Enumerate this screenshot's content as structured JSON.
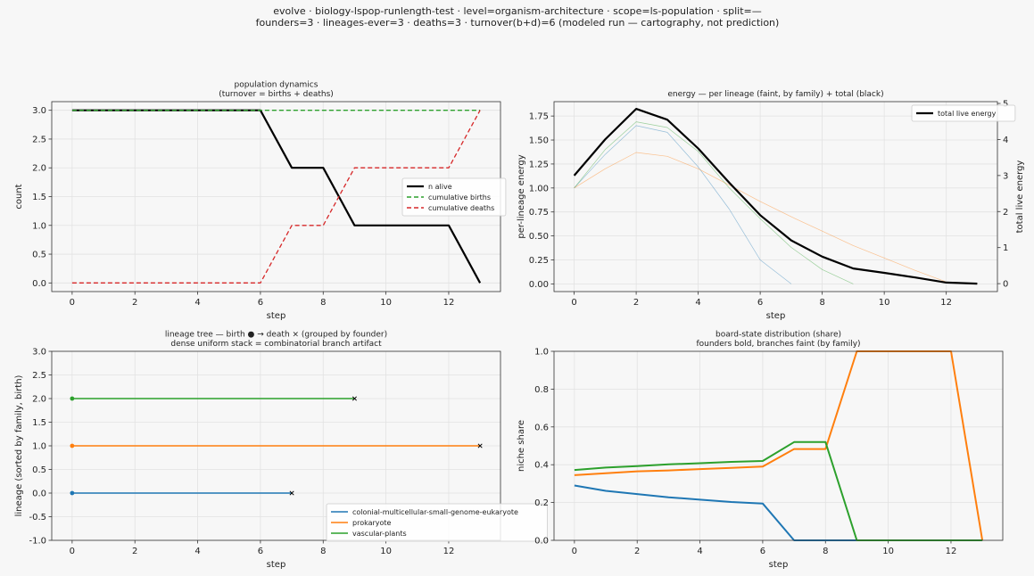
{
  "suptitle": {
    "line1": "evolve · biology-lspop-runlength-test · level=organism-architecture · scope=ls-population · split=—",
    "line2": "founders=3 · lineages-ever=3 · deaths=3 · turnover(b+d)=6   (modeled run — cartography, not prediction)"
  },
  "colors": {
    "blue": "#1f77b4",
    "orange": "#ff7f0e",
    "green": "#2ca02c",
    "red": "#d62728",
    "black": "#000000"
  },
  "chart_data": [
    {
      "id": "population",
      "type": "line",
      "title": [
        "population dynamics",
        "(turnover = births + deaths)"
      ],
      "xlabel": "step",
      "ylabel": "count",
      "xlim": [
        -0.65,
        13.65
      ],
      "ylim": [
        -0.15,
        3.15
      ],
      "xticks": [
        0,
        2,
        4,
        6,
        8,
        10,
        12
      ],
      "yticks": [
        0.0,
        0.5,
        1.0,
        1.5,
        2.0,
        2.5,
        3.0
      ],
      "grid": true,
      "legend": "center-right",
      "series": [
        {
          "name": "n alive",
          "color": "#000000",
          "style": "solid",
          "width": 2.2,
          "x": [
            0,
            1,
            2,
            3,
            4,
            5,
            6,
            7,
            8,
            9,
            10,
            11,
            12,
            13
          ],
          "y": [
            3,
            3,
            3,
            3,
            3,
            3,
            3,
            2,
            2,
            1,
            1,
            1,
            1,
            0
          ]
        },
        {
          "name": "cumulative births",
          "color": "#2ca02c",
          "style": "dashed",
          "width": 1.3,
          "x": [
            0,
            1,
            2,
            3,
            4,
            5,
            6,
            7,
            8,
            9,
            10,
            11,
            12,
            13
          ],
          "y": [
            3,
            3,
            3,
            3,
            3,
            3,
            3,
            3,
            3,
            3,
            3,
            3,
            3,
            3
          ]
        },
        {
          "name": "cumulative deaths",
          "color": "#d62728",
          "style": "dashed",
          "width": 1.3,
          "x": [
            0,
            1,
            2,
            3,
            4,
            5,
            6,
            7,
            8,
            9,
            10,
            11,
            12,
            13
          ],
          "y": [
            0,
            0,
            0,
            0,
            0,
            0,
            0,
            1,
            1,
            2,
            2,
            2,
            2,
            3
          ]
        }
      ]
    },
    {
      "id": "energy",
      "type": "line",
      "title": [
        "energy — per lineage (faint, by family) + total (black)"
      ],
      "xlabel": "step",
      "ylabel": "per-lineage energy",
      "ylabel_right": "total live energy",
      "xlim": [
        -0.65,
        13.65
      ],
      "ylim": [
        -0.08,
        1.9
      ],
      "ylim_right": [
        -0.22,
        5.05
      ],
      "xticks": [
        0,
        2,
        4,
        6,
        8,
        10,
        12
      ],
      "yticks": [
        0.0,
        0.25,
        0.5,
        0.75,
        1.0,
        1.25,
        1.5,
        1.75
      ],
      "yticks_right": [
        0,
        1,
        2,
        3,
        4,
        5
      ],
      "grid": true,
      "legend": "top-right",
      "series": [
        {
          "color": "#1f77b4",
          "width": 0.7,
          "opacity": 0.45,
          "x": [
            0,
            1,
            2,
            3,
            4,
            5,
            6,
            7
          ],
          "y": [
            1.0,
            1.35,
            1.65,
            1.58,
            1.22,
            0.78,
            0.25,
            0.0
          ]
        },
        {
          "color": "#ff7f0e",
          "width": 0.7,
          "opacity": 0.45,
          "x": [
            0,
            1,
            2,
            3,
            4,
            5,
            6,
            7,
            8,
            9,
            10,
            11,
            12,
            13
          ],
          "y": [
            1.0,
            1.2,
            1.37,
            1.33,
            1.2,
            1.03,
            0.86,
            0.7,
            0.55,
            0.4,
            0.27,
            0.14,
            0.02,
            0.0
          ]
        },
        {
          "color": "#2ca02c",
          "width": 0.7,
          "opacity": 0.45,
          "x": [
            0,
            1,
            2,
            3,
            4,
            5,
            6,
            7,
            8,
            9
          ],
          "y": [
            1.0,
            1.4,
            1.69,
            1.63,
            1.38,
            1.0,
            0.68,
            0.38,
            0.15,
            0.0
          ]
        },
        {
          "name": "total live energy",
          "axis": "right",
          "color": "#000000",
          "width": 2.2,
          "x": [
            0,
            1,
            2,
            3,
            4,
            5,
            6,
            7,
            8,
            9,
            10,
            11,
            12,
            13
          ],
          "y": [
            3.0,
            4.0,
            4.85,
            4.55,
            3.75,
            2.8,
            1.9,
            1.2,
            0.75,
            0.42,
            0.3,
            0.17,
            0.03,
            0.0
          ]
        }
      ]
    },
    {
      "id": "lineage-tree",
      "type": "line",
      "title": [
        "lineage tree — birth ● → death ×  (grouped by founder)",
        "dense uniform stack = combinatorial branch artifact"
      ],
      "xlabel": "step",
      "ylabel": "lineage (sorted by family, birth)",
      "xlim": [
        -0.65,
        13.65
      ],
      "ylim": [
        -1.0,
        3.0
      ],
      "xticks": [
        0,
        2,
        4,
        6,
        8,
        10,
        12
      ],
      "yticks": [
        -1.0,
        -0.5,
        0.0,
        0.5,
        1.0,
        1.5,
        2.0,
        2.5,
        3.0
      ],
      "grid": true,
      "legend": "bottom-right",
      "series": [
        {
          "name": "colonial-multicellular-small-genome-eukaryote",
          "color": "#1f77b4",
          "width": 1.5,
          "x": [
            0,
            7
          ],
          "y": [
            0,
            0
          ]
        },
        {
          "name": "prokaryote",
          "color": "#ff7f0e",
          "width": 1.5,
          "x": [
            0,
            13
          ],
          "y": [
            1,
            1
          ]
        },
        {
          "name": "vascular-plants",
          "color": "#2ca02c",
          "width": 1.5,
          "x": [
            0,
            9
          ],
          "y": [
            2,
            2
          ]
        }
      ]
    },
    {
      "id": "board-share",
      "type": "line",
      "title": [
        "board-state distribution (share)",
        "founders bold, branches faint (by family)"
      ],
      "xlabel": "step",
      "ylabel": "niche share",
      "xlim": [
        -0.65,
        13.65
      ],
      "ylim": [
        0.0,
        1.0
      ],
      "xticks": [
        0,
        2,
        4,
        6,
        8,
        10,
        12
      ],
      "yticks": [
        0.0,
        0.2,
        0.4,
        0.6,
        0.8,
        1.0
      ],
      "grid": true,
      "series": [
        {
          "color": "#1f77b4",
          "width": 2.0,
          "x": [
            0,
            1,
            2,
            3,
            4,
            5,
            6,
            7,
            8,
            9,
            10,
            11,
            12,
            13
          ],
          "y": [
            0.29,
            0.262,
            0.245,
            0.228,
            0.215,
            0.203,
            0.195,
            0.0,
            0.0,
            0.0,
            0.0,
            0.0,
            0.0,
            0.0
          ]
        },
        {
          "color": "#ff7f0e",
          "width": 2.0,
          "x": [
            0,
            1,
            2,
            3,
            4,
            5,
            6,
            7,
            8,
            9,
            10,
            11,
            12,
            13
          ],
          "y": [
            0.345,
            0.355,
            0.365,
            0.37,
            0.377,
            0.383,
            0.39,
            0.483,
            0.483,
            1.0,
            1.0,
            1.0,
            1.0,
            0.0
          ]
        },
        {
          "color": "#2ca02c",
          "width": 2.0,
          "x": [
            0,
            1,
            2,
            3,
            4,
            5,
            6,
            7,
            8,
            9,
            10,
            11,
            12,
            13
          ],
          "y": [
            0.372,
            0.385,
            0.393,
            0.402,
            0.408,
            0.415,
            0.42,
            0.52,
            0.52,
            0.0,
            0.0,
            0.0,
            0.0,
            0.0
          ]
        }
      ]
    }
  ]
}
